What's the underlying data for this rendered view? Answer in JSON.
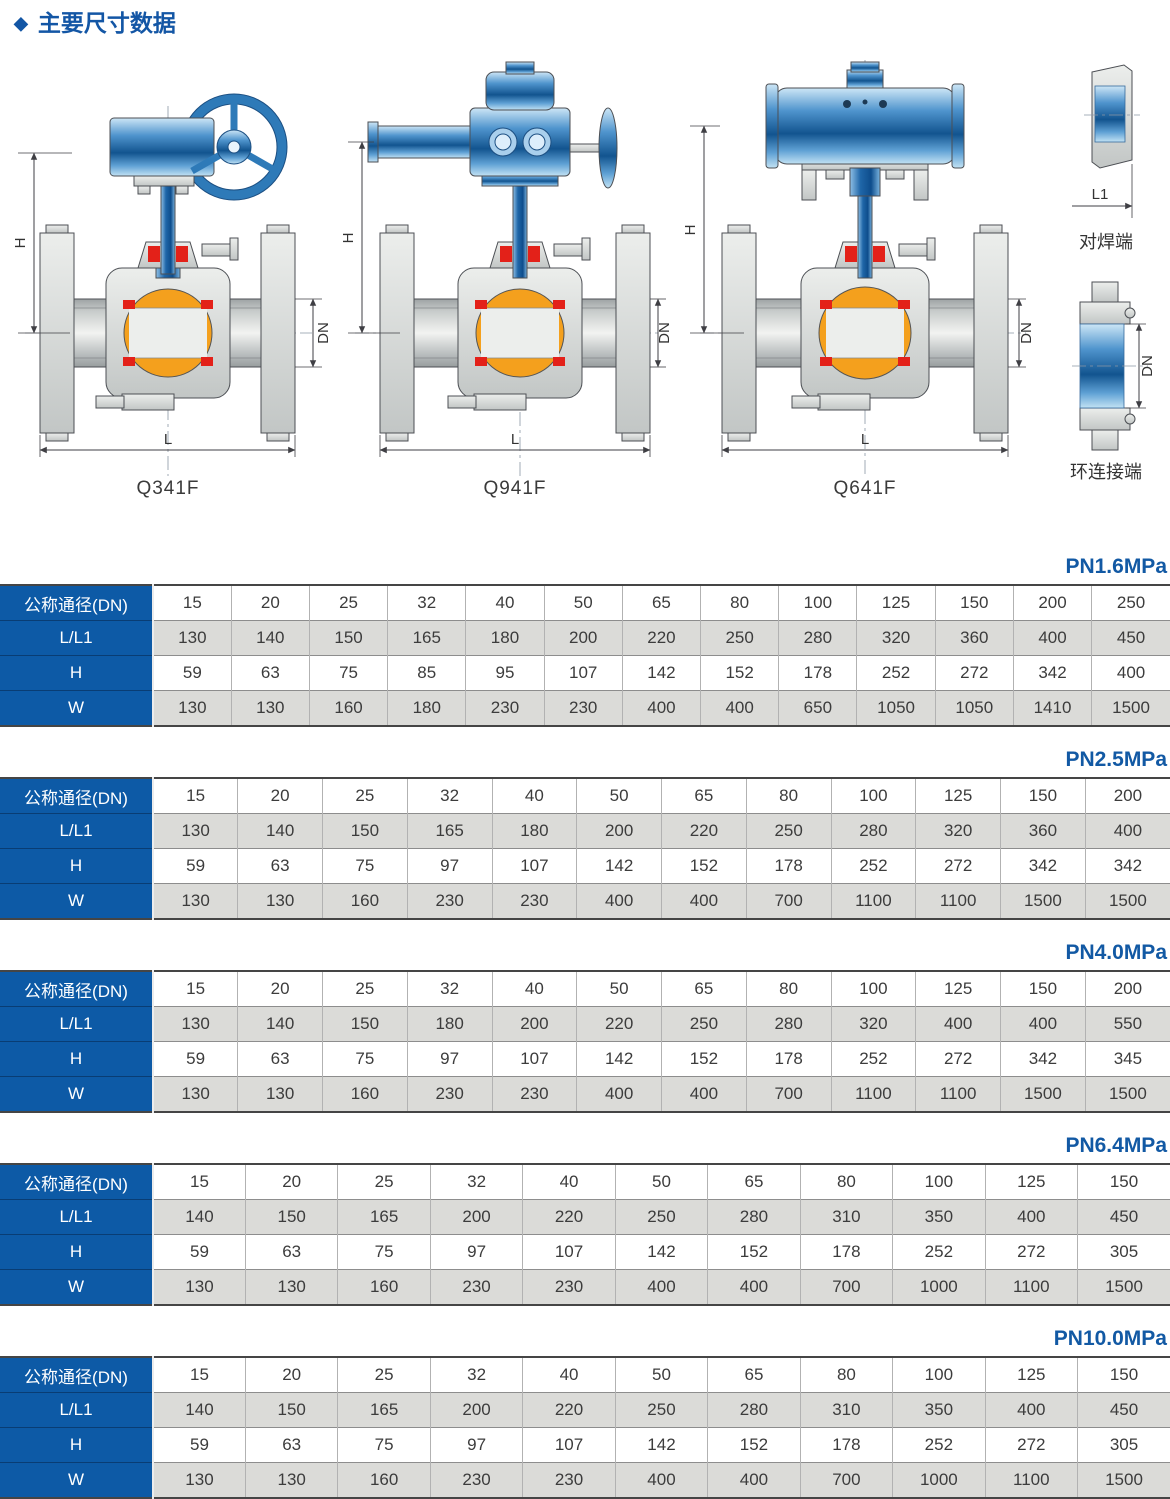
{
  "header": {
    "bullet": "◆",
    "title": "主要尺寸数据"
  },
  "figures": {
    "valves": [
      {
        "label": "Q341F",
        "dim_h": "H",
        "dim_dn": "DN",
        "dim_l": "L"
      },
      {
        "label": "Q941F",
        "dim_h": "H",
        "dim_dn": "DN",
        "dim_l": "L"
      },
      {
        "label": "Q641F",
        "dim_h": "H",
        "dim_dn": "DN",
        "dim_l": "L"
      }
    ],
    "ends": [
      {
        "label": "对焊端",
        "dim": "L1"
      },
      {
        "label": "环连接端",
        "dim": "DN"
      }
    ]
  },
  "row_headers": [
    "公称通径(DN)",
    "L/L1",
    "H",
    "W"
  ],
  "tables": [
    {
      "title": "PN1.6MPa",
      "rows": [
        [
          "15",
          "20",
          "25",
          "32",
          "40",
          "50",
          "65",
          "80",
          "100",
          "125",
          "150",
          "200",
          "250"
        ],
        [
          "130",
          "140",
          "150",
          "165",
          "180",
          "200",
          "220",
          "250",
          "280",
          "320",
          "360",
          "400",
          "450"
        ],
        [
          "59",
          "63",
          "75",
          "85",
          "95",
          "107",
          "142",
          "152",
          "178",
          "252",
          "272",
          "342",
          "400"
        ],
        [
          "130",
          "130",
          "160",
          "180",
          "230",
          "230",
          "400",
          "400",
          "650",
          "1050",
          "1050",
          "1410",
          "1500"
        ]
      ]
    },
    {
      "title": "PN2.5MPa",
      "rows": [
        [
          "15",
          "20",
          "25",
          "32",
          "40",
          "50",
          "65",
          "80",
          "100",
          "125",
          "150",
          "200"
        ],
        [
          "130",
          "140",
          "150",
          "165",
          "180",
          "200",
          "220",
          "250",
          "280",
          "320",
          "360",
          "400"
        ],
        [
          "59",
          "63",
          "75",
          "97",
          "107",
          "142",
          "152",
          "178",
          "252",
          "272",
          "342",
          "342"
        ],
        [
          "130",
          "130",
          "160",
          "230",
          "230",
          "400",
          "400",
          "700",
          "1100",
          "1100",
          "1500",
          "1500"
        ]
      ]
    },
    {
      "title": "PN4.0MPa",
      "rows": [
        [
          "15",
          "20",
          "25",
          "32",
          "40",
          "50",
          "65",
          "80",
          "100",
          "125",
          "150",
          "200"
        ],
        [
          "130",
          "140",
          "150",
          "180",
          "200",
          "220",
          "250",
          "280",
          "320",
          "400",
          "400",
          "550"
        ],
        [
          "59",
          "63",
          "75",
          "97",
          "107",
          "142",
          "152",
          "178",
          "252",
          "272",
          "342",
          "345"
        ],
        [
          "130",
          "130",
          "160",
          "230",
          "230",
          "400",
          "400",
          "700",
          "1100",
          "1100",
          "1500",
          "1500"
        ]
      ]
    },
    {
      "title": "PN6.4MPa",
      "rows": [
        [
          "15",
          "20",
          "25",
          "32",
          "40",
          "50",
          "65",
          "80",
          "100",
          "125",
          "150"
        ],
        [
          "140",
          "150",
          "165",
          "200",
          "220",
          "250",
          "280",
          "310",
          "350",
          "400",
          "450"
        ],
        [
          "59",
          "63",
          "75",
          "97",
          "107",
          "142",
          "152",
          "178",
          "252",
          "272",
          "305"
        ],
        [
          "130",
          "130",
          "160",
          "230",
          "230",
          "400",
          "400",
          "700",
          "1000",
          "1100",
          "1500"
        ]
      ]
    },
    {
      "title": "PN10.0MPa",
      "rows": [
        [
          "15",
          "20",
          "25",
          "32",
          "40",
          "50",
          "65",
          "80",
          "100",
          "125",
          "150"
        ],
        [
          "140",
          "150",
          "165",
          "200",
          "220",
          "250",
          "280",
          "310",
          "350",
          "400",
          "450"
        ],
        [
          "59",
          "63",
          "75",
          "97",
          "107",
          "142",
          "152",
          "178",
          "252",
          "272",
          "305"
        ],
        [
          "130",
          "130",
          "160",
          "230",
          "230",
          "400",
          "400",
          "700",
          "1000",
          "1100",
          "1500"
        ]
      ]
    }
  ],
  "colors": {
    "accent_blue": "#1356a5",
    "table_header_blue": "#0d5aa6",
    "alt_row_gray": "#dbdbd8",
    "body_gray": "#d4d7d6",
    "ball_orange": "#f4a01d",
    "seat_red": "#e32119",
    "actuator_blue": "#2e7ab8"
  }
}
